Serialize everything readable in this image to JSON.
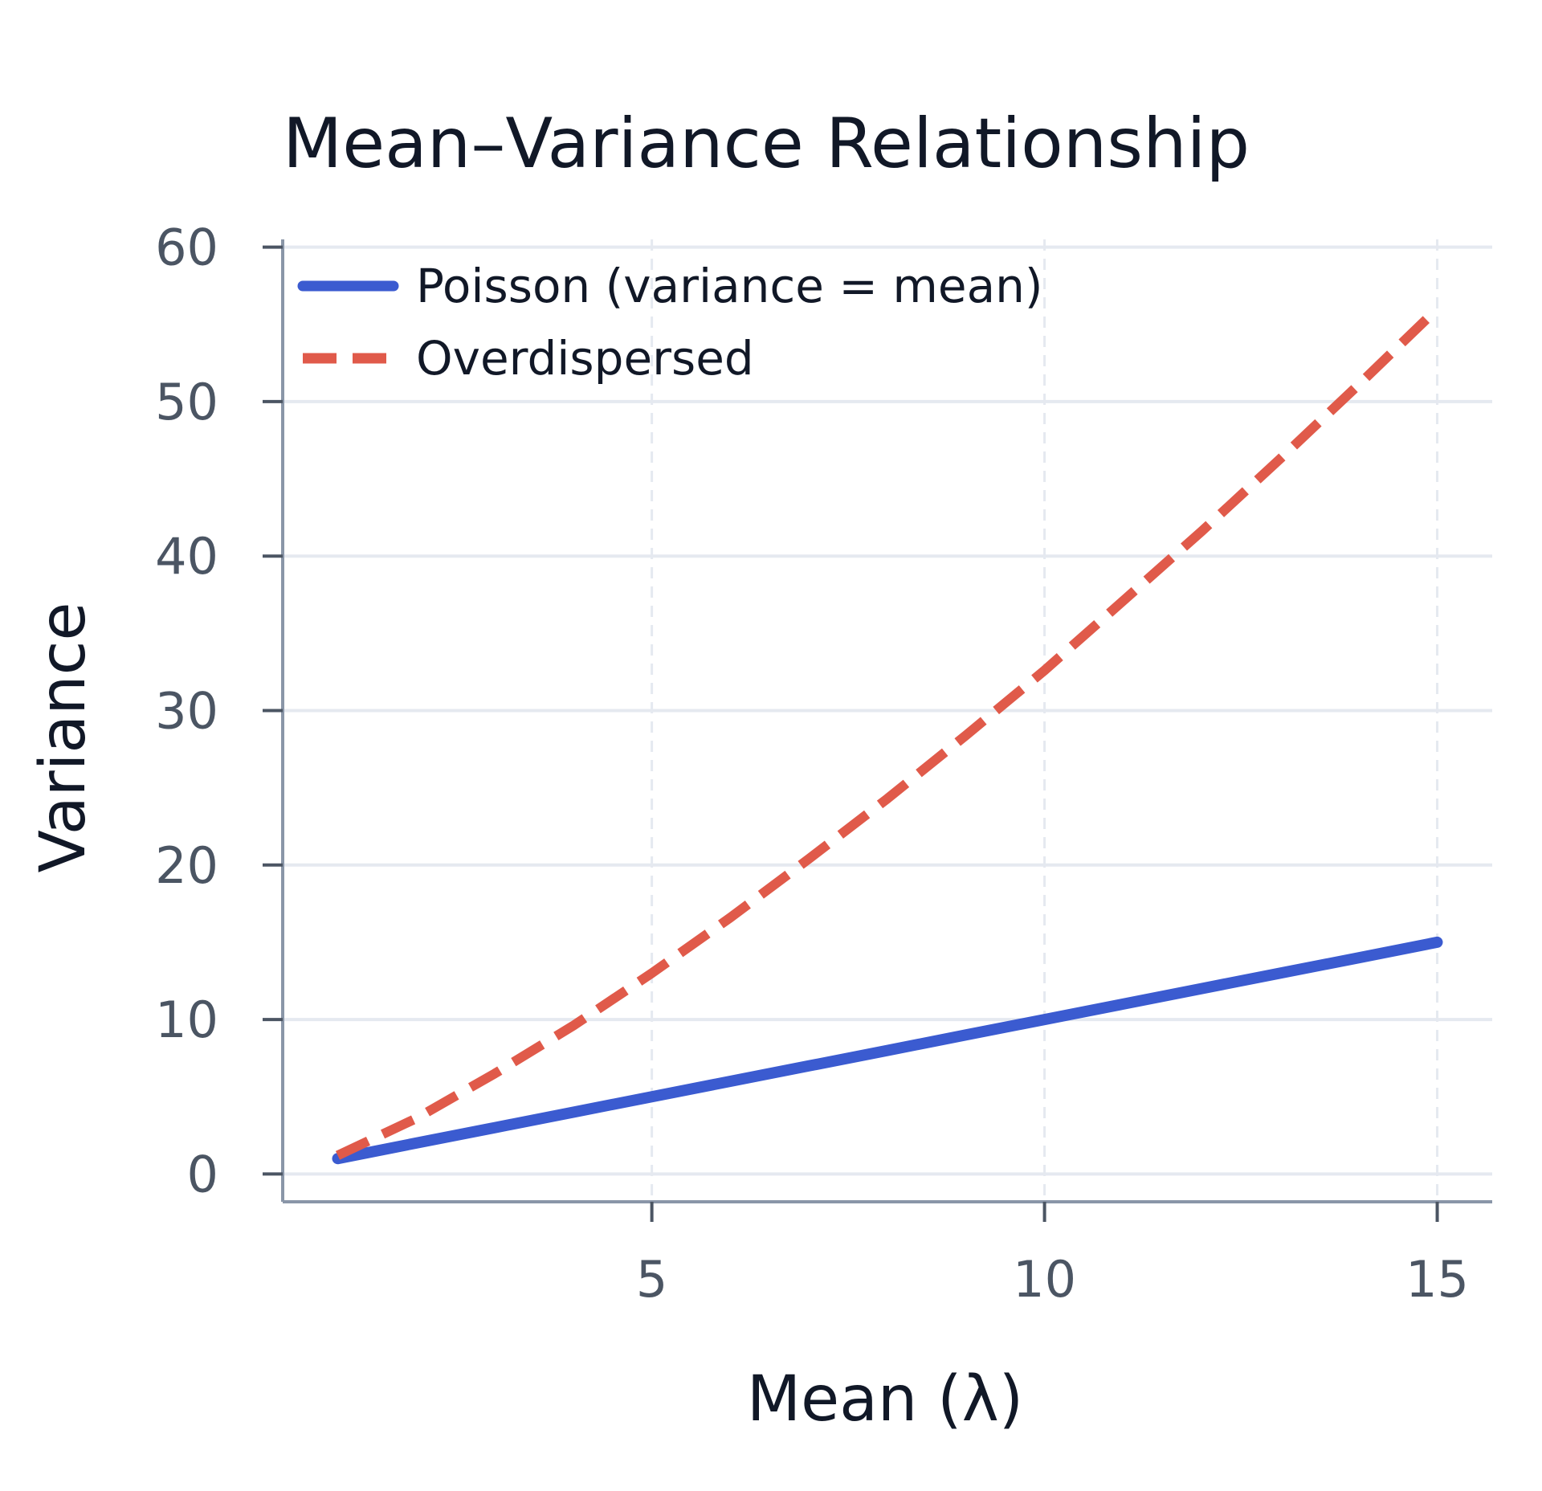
{
  "chart_data": {
    "type": "line",
    "title": "Mean–Variance Relationship",
    "xlabel": "Mean (λ)",
    "ylabel": "Variance",
    "xlim": [
      0.3,
      15.7
    ],
    "ylim": [
      -1.8,
      60.5
    ],
    "x_ticks": [
      5,
      10,
      15
    ],
    "x_tick_labels": [
      "5",
      "10",
      "15"
    ],
    "y_ticks": [
      0,
      10,
      20,
      30,
      40,
      50,
      60
    ],
    "y_tick_labels": [
      "0",
      "10",
      "20",
      "30",
      "40",
      "50",
      "60"
    ],
    "grid": true,
    "legend_position": "top-left",
    "x": [
      1,
      2,
      3,
      4,
      5,
      6,
      7,
      8,
      9,
      10,
      11,
      12,
      13,
      14,
      15
    ],
    "series": [
      {
        "name": "Poisson (variance = mean)",
        "style": "solid",
        "color": "#3b5bd0",
        "values": [
          1,
          2,
          3,
          4,
          5,
          6,
          7,
          8,
          9,
          10,
          11,
          12,
          13,
          14,
          15
        ]
      },
      {
        "name": "Overdispersed",
        "style": "dashed",
        "color": "#e05a4a",
        "values": [
          1.2,
          3.6,
          6.5,
          9.6,
          13.0,
          16.6,
          20.4,
          24.3,
          28.4,
          32.6,
          37.1,
          41.6,
          46.3,
          51.1,
          56.0
        ]
      }
    ]
  },
  "colors": {
    "axis": "#8a96a8",
    "grid": "#e5e9f0",
    "poisson": "#3b5bd0",
    "overdispersed": "#e05a4a"
  }
}
